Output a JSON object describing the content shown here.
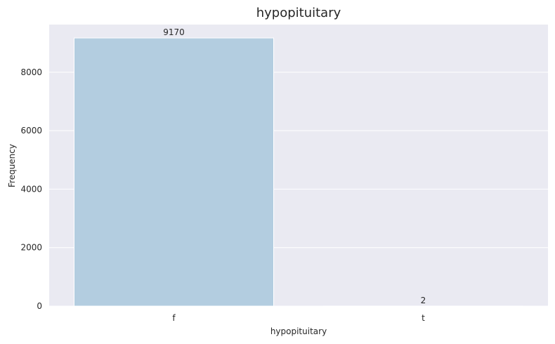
{
  "chart_data": {
    "type": "bar",
    "title": "hypopituitary",
    "xlabel": "hypopituitary",
    "ylabel": "Frequency",
    "categories": [
      "f",
      "t"
    ],
    "values": [
      9170,
      2
    ],
    "data_labels": [
      "9170",
      "2"
    ],
    "ylim": [
      0,
      9628.5
    ],
    "yticks": [
      0,
      2000,
      4000,
      6000,
      8000
    ],
    "ytick_labels": [
      "0",
      "2000",
      "4000",
      "6000",
      "8000"
    ],
    "grid": true,
    "bar_color": "#b3cde0",
    "background_color": "#eaeaf2",
    "grid_color": "#ffffff"
  }
}
